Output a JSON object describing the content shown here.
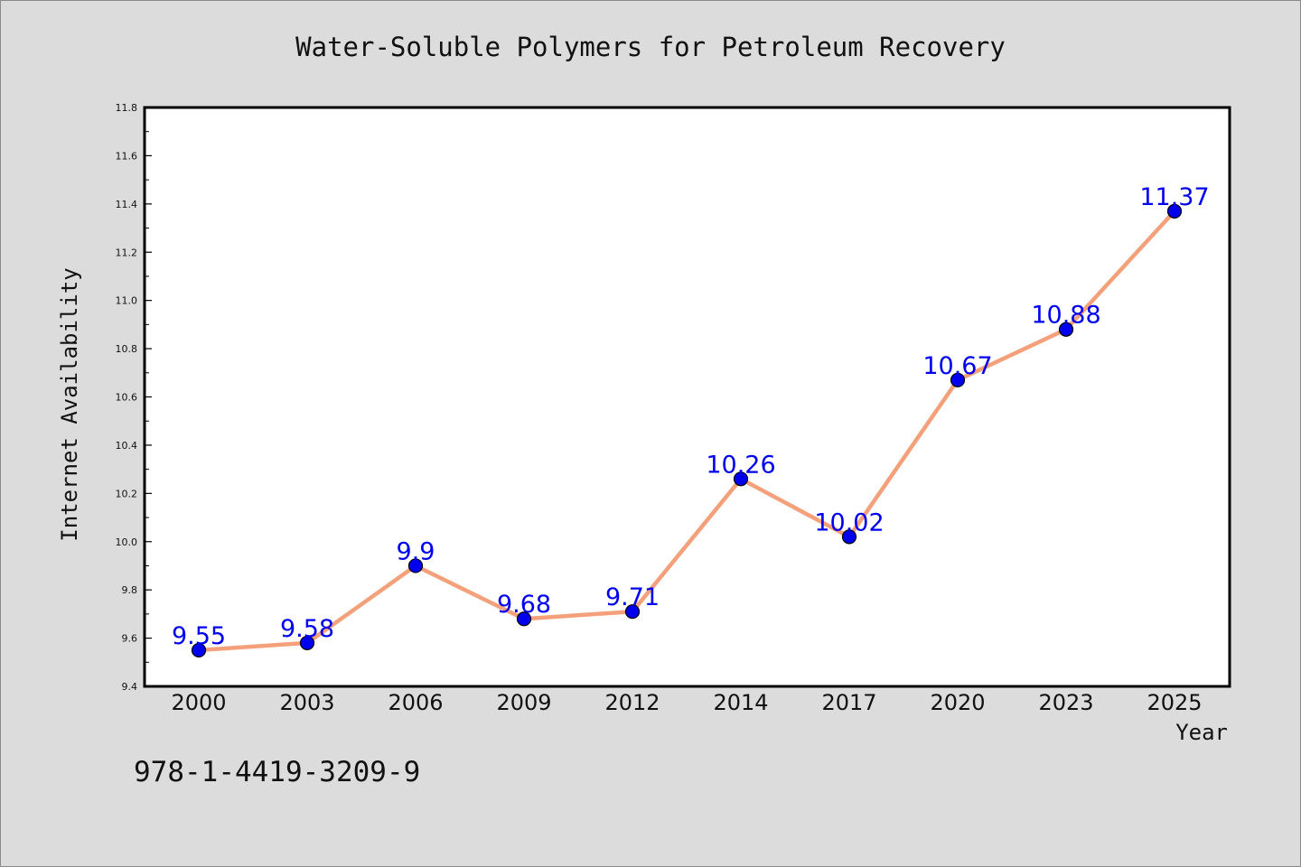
{
  "chart_data": {
    "type": "line",
    "title": "Water-Soluble Polymers for Petroleum Recovery",
    "xlabel": "Year",
    "ylabel": "Internet Availability",
    "categories": [
      "2000",
      "2003",
      "2006",
      "2009",
      "2012",
      "2014",
      "2017",
      "2020",
      "2023",
      "2025"
    ],
    "values": [
      9.55,
      9.58,
      9.9,
      9.68,
      9.71,
      10.26,
      10.02,
      10.67,
      10.88,
      11.37
    ],
    "value_labels": [
      "9.55",
      "9.58",
      "9.9",
      "9.68",
      "9.71",
      "10.26",
      "10.02",
      "10.67",
      "10.88",
      "11.37"
    ],
    "ylim": [
      9.4,
      11.8
    ],
    "yticks": [
      9.4,
      9.6,
      9.8,
      10.0,
      10.2,
      10.4,
      10.6,
      10.8,
      11.0,
      11.2,
      11.4,
      11.6,
      11.8
    ],
    "ytick_labels": [
      "9.4",
      "9.6",
      "9.8",
      "10.0",
      "10.2",
      "10.4",
      "10.6",
      "10.8",
      "11.0",
      "11.2",
      "11.4",
      "11.6",
      "11.8"
    ],
    "grid": false,
    "line_color": "#f4a07a",
    "marker_color": "#0000ee",
    "label_color": "#0000ee"
  },
  "annotation": "978-1-4419-3209-9"
}
